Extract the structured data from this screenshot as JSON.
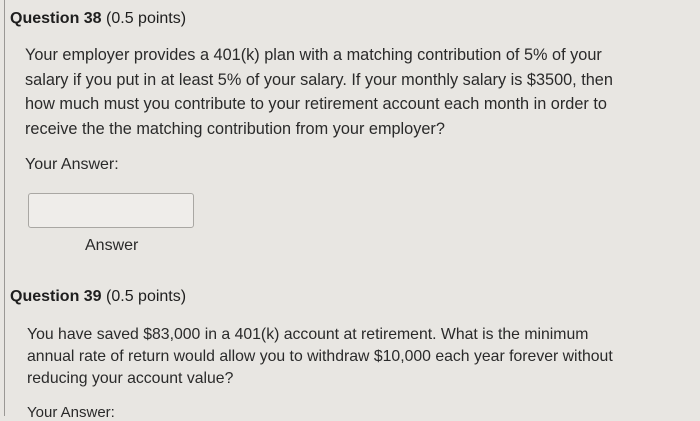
{
  "questions": [
    {
      "title": "Question 38",
      "points": "(0.5 points)",
      "text": "Your employer provides a 401(k) plan with a matching contribution of 5% of your salary if you put in at least 5% of your salary. If your monthly salary is $3500, then how much must you contribute to your retirement account each month in order to receive the the matching contribution from your employer?",
      "answer_label": "Your Answer:",
      "answer_value": "",
      "answer_caption": "Answer"
    },
    {
      "title": "Question 39",
      "points": "(0.5 points)",
      "text": "You have saved $83,000 in a 401(k) account at retirement. What is the minimum annual rate of return would allow you to withdraw $10,000 each year forever without reducing your account value?",
      "answer_label": "Your Answer:"
    }
  ]
}
